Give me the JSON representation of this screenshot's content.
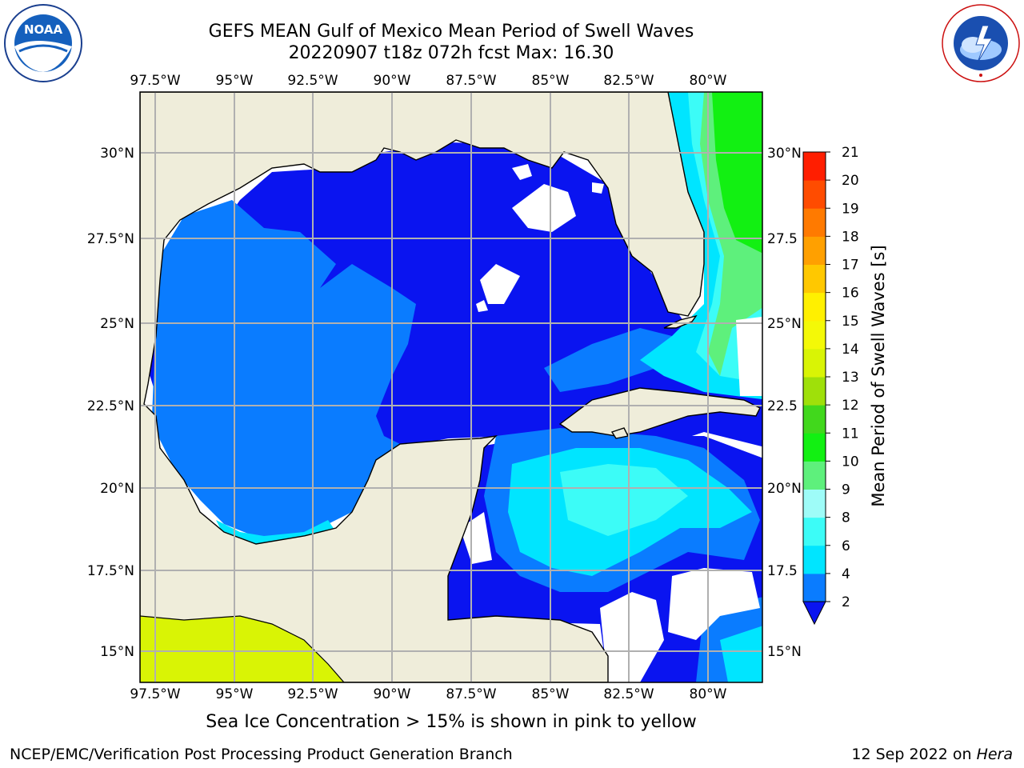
{
  "header": {
    "title_line1": "GEFS MEAN Gulf of Mexico Mean Period of Swell Waves",
    "title_line2": "20220907 t18z 072h fcst   Max: 16.30"
  },
  "logos": {
    "left": {
      "name": "NOAA",
      "text": "NOAA",
      "ring_text": "NATIONAL OCEANIC AND ATMOSPHERIC ADMINISTRATION · U.S. DEPARTMENT OF COMMERCE"
    },
    "right": {
      "name": "National Weather Service",
      "ring_text": "NATIONAL WEATHER SERVICE"
    }
  },
  "map": {
    "lon_labels": [
      "97.5°W",
      "95°W",
      "92.5°W",
      "90°W",
      "87.5°W",
      "85°W",
      "82.5°W",
      "80°W"
    ],
    "lat_labels_left": [
      "30°N",
      "27.5°N",
      "25°N",
      "22.5°N",
      "20°N",
      "17.5°N",
      "15°N"
    ],
    "lat_labels_right": [
      "30°N",
      "27.5",
      "25°N",
      "22.5",
      "20°N",
      "17.5",
      "15°N"
    ],
    "lon_range": [
      -98,
      -78.2
    ],
    "lat_range": [
      14,
      31.8
    ],
    "colors": {
      "land": "#efedda",
      "ocean_missing": "#ffffff",
      "gridline": "#b0b0b0",
      "coast": "#000000"
    }
  },
  "colorbar": {
    "label": "Mean Period of Swell Waves [s]",
    "ticks": [
      "2",
      "4",
      "6",
      "8",
      "9",
      "10",
      "11",
      "12",
      "13",
      "14",
      "15",
      "16",
      "17",
      "18",
      "19",
      "20",
      "21"
    ],
    "bins": [
      {
        "lo": 2,
        "hi": 4,
        "color": "#0a7cff"
      },
      {
        "lo": 4,
        "hi": 6,
        "color": "#00e5ff"
      },
      {
        "lo": 6,
        "hi": 8,
        "color": "#3cfcf7"
      },
      {
        "lo": 8,
        "hi": 9,
        "color": "#9efcf8"
      },
      {
        "lo": 9,
        "hi": 10,
        "color": "#5ef07c"
      },
      {
        "lo": 10,
        "hi": 11,
        "color": "#12f012"
      },
      {
        "lo": 11,
        "hi": 12,
        "color": "#41d81c"
      },
      {
        "lo": 12,
        "hi": 13,
        "color": "#9fe00a"
      },
      {
        "lo": 13,
        "hi": 14,
        "color": "#d9f405"
      },
      {
        "lo": 14,
        "hi": 15,
        "color": "#f4f907"
      },
      {
        "lo": 15,
        "hi": 16,
        "color": "#fff000"
      },
      {
        "lo": 16,
        "hi": 17,
        "color": "#ffc800"
      },
      {
        "lo": 17,
        "hi": 18,
        "color": "#ffa000"
      },
      {
        "lo": 18,
        "hi": 19,
        "color": "#ff7a00"
      },
      {
        "lo": 19,
        "hi": 20,
        "color": "#ff4c00"
      },
      {
        "lo": 20,
        "hi": 21,
        "color": "#ff1e00"
      }
    ],
    "under_color": "#0a14f0"
  },
  "footer": {
    "note": "Sea Ice Concentration > 15% is shown in pink to yellow",
    "credit": "NCEP/EMC/Verification Post Processing Product Generation Branch",
    "date": "12 Sep 2022 on ",
    "machine": "Hera"
  }
}
